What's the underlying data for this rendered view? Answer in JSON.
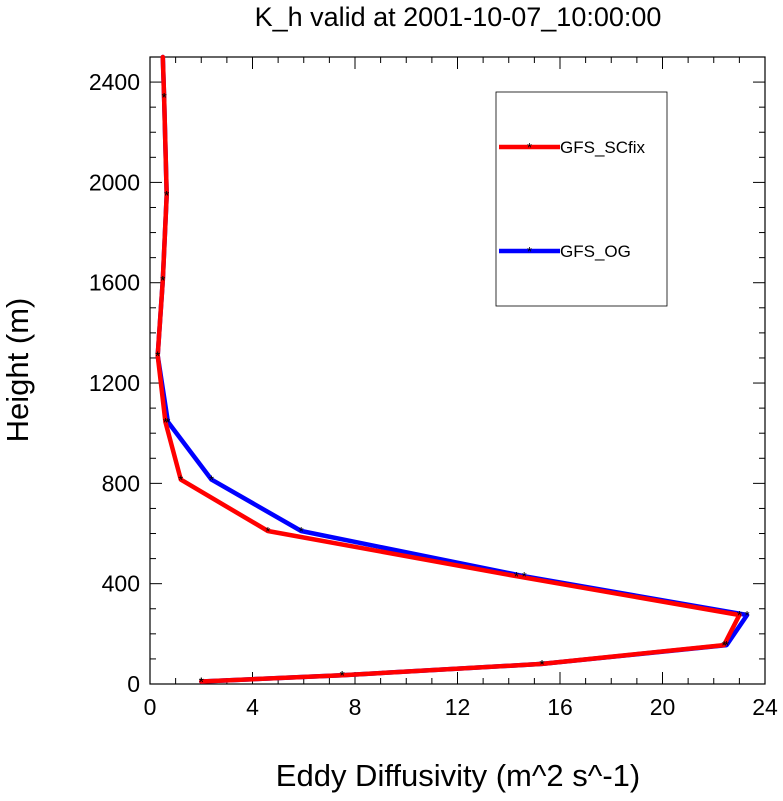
{
  "chart_data": {
    "type": "line",
    "title": "K_h valid at 2001-10-07_10:00:00",
    "xlabel": "Eddy Diffusivity (m^2 s^-1)",
    "ylabel": "Height (m)",
    "xlim": [
      0,
      24
    ],
    "ylim": [
      0,
      2500
    ],
    "xticks": [
      0,
      4,
      8,
      12,
      16,
      20,
      24
    ],
    "yticks": [
      0,
      400,
      800,
      1200,
      1600,
      2000,
      2400
    ],
    "grid": false,
    "legend_position": "top-right",
    "series": [
      {
        "name": "GFS_OG",
        "color": "#0000ff",
        "marker": "asterisk",
        "x": [
          2.0,
          7.5,
          15.3,
          22.5,
          23.3,
          14.6,
          5.9,
          2.4,
          0.7,
          0.3,
          0.5,
          0.65,
          0.55,
          0.5
        ],
        "y": [
          10,
          35,
          80,
          155,
          275,
          430,
          610,
          815,
          1045,
          1310,
          1610,
          1950,
          2340,
          2500
        ]
      },
      {
        "name": "GFS_SCfix",
        "color": "#ff0000",
        "marker": "asterisk",
        "x": [
          2.0,
          7.5,
          15.3,
          22.4,
          23.0,
          14.3,
          4.6,
          1.2,
          0.6,
          0.3,
          0.5,
          0.65,
          0.55,
          0.5
        ],
        "y": [
          10,
          35,
          80,
          155,
          275,
          430,
          610,
          815,
          1045,
          1310,
          1610,
          1950,
          2340,
          2500
        ]
      }
    ],
    "legend_order": [
      "GFS_SCfix",
      "GFS_OG"
    ]
  }
}
